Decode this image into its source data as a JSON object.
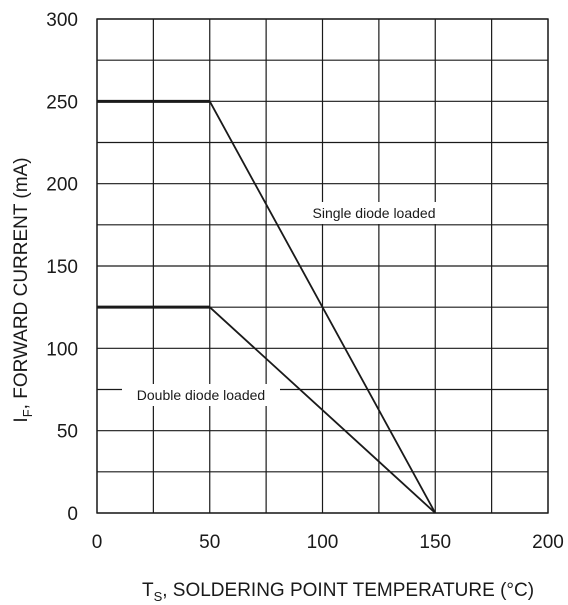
{
  "chart_data": {
    "type": "line",
    "xlim": [
      0,
      200
    ],
    "ylim": [
      0,
      300
    ],
    "x_ticks": [
      0,
      50,
      100,
      150,
      200
    ],
    "y_ticks": [
      0,
      50,
      100,
      150,
      200,
      250,
      300
    ],
    "x_minor_step": 25,
    "y_minor_step": 25,
    "grid": true,
    "xlabel": {
      "main": "T",
      "sub": "S",
      "rest": ", SOLDERING POINT TEMPERATURE (°C)"
    },
    "ylabel": {
      "main": "I",
      "sub": "F",
      "rest": ", FORWARD CURRENT (mA)"
    },
    "series": [
      {
        "points": [
          [
            0,
            250
          ],
          [
            50,
            250
          ],
          [
            150,
            0
          ]
        ]
      },
      {
        "points": [
          [
            0,
            125
          ],
          [
            50,
            125
          ],
          [
            150,
            0
          ]
        ]
      }
    ],
    "annotations": [
      {
        "text": "Single diode loaded"
      },
      {
        "text": "Double diode loaded"
      }
    ],
    "colors": {
      "line": "#1a1a1a",
      "grid": "#1a1a1a"
    }
  }
}
